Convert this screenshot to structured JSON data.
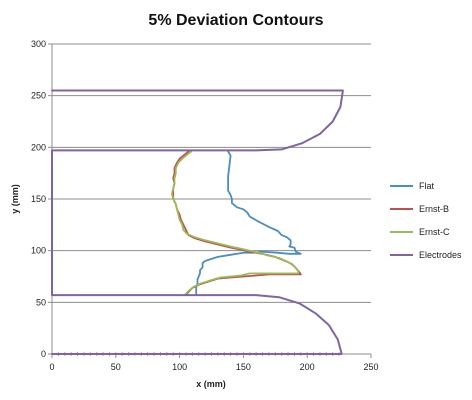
{
  "chart_data": {
    "type": "line",
    "title": "5% Deviation Contours",
    "xlabel": "x (mm)",
    "ylabel": "y (mm)",
    "xlim": [
      0,
      250
    ],
    "ylim": [
      0,
      300
    ],
    "xticks": [
      0,
      50,
      100,
      150,
      200,
      250
    ],
    "yticks": [
      0,
      50,
      100,
      150,
      200,
      250,
      300
    ],
    "grid": "horizontal",
    "legend_position": "right",
    "series": [
      {
        "name": "Flat",
        "color": "#4a8ec2",
        "points": [
          [
            138,
            196
          ],
          [
            140,
            192
          ],
          [
            139,
            182
          ],
          [
            138,
            172
          ],
          [
            138,
            164
          ],
          [
            138,
            158
          ],
          [
            140,
            154
          ],
          [
            141,
            150
          ],
          [
            141,
            146
          ],
          [
            145,
            142
          ],
          [
            150,
            140
          ],
          [
            153,
            137
          ],
          [
            155,
            133
          ],
          [
            162,
            128
          ],
          [
            170,
            123
          ],
          [
            177,
            119
          ],
          [
            180,
            115
          ],
          [
            184,
            113
          ],
          [
            187,
            110
          ],
          [
            187,
            106
          ],
          [
            186,
            104
          ],
          [
            190,
            103
          ],
          [
            191,
            99
          ],
          [
            195,
            97
          ],
          [
            186,
            97
          ],
          [
            176,
            98
          ],
          [
            165,
            99
          ],
          [
            158,
            98
          ],
          [
            150,
            98
          ],
          [
            145,
            97
          ],
          [
            140,
            96
          ],
          [
            135,
            95
          ],
          [
            130,
            94
          ],
          [
            125,
            92
          ],
          [
            120,
            90
          ],
          [
            118,
            88
          ],
          [
            118,
            84
          ],
          [
            116,
            81
          ],
          [
            116,
            78
          ],
          [
            115,
            75
          ],
          [
            114,
            72
          ],
          [
            114,
            68
          ],
          [
            113,
            65
          ],
          [
            113,
            60
          ],
          [
            113,
            57
          ]
        ]
      },
      {
        "name": "Ernst-B",
        "color": "#c0504d",
        "points": [
          [
            107,
            196
          ],
          [
            104,
            193
          ],
          [
            100,
            189
          ],
          [
            98,
            185
          ],
          [
            96,
            180
          ],
          [
            96,
            175
          ],
          [
            95,
            170
          ],
          [
            96,
            165
          ],
          [
            95,
            160
          ],
          [
            95,
            155
          ],
          [
            95,
            150
          ],
          [
            97,
            145
          ],
          [
            98,
            140
          ],
          [
            100,
            135
          ],
          [
            101,
            130
          ],
          [
            103,
            125
          ],
          [
            105,
            120
          ],
          [
            107,
            115
          ],
          [
            112,
            112
          ],
          [
            120,
            109
          ],
          [
            130,
            106
          ],
          [
            140,
            103
          ],
          [
            148,
            101
          ],
          [
            155,
            99
          ],
          [
            160,
            98
          ],
          [
            168,
            96
          ],
          [
            175,
            94
          ],
          [
            183,
            90
          ],
          [
            188,
            87
          ],
          [
            192,
            82
          ],
          [
            194,
            79
          ],
          [
            195,
            77
          ],
          [
            190,
            77
          ],
          [
            180,
            77
          ],
          [
            170,
            77
          ],
          [
            160,
            76
          ],
          [
            150,
            75
          ],
          [
            140,
            74
          ],
          [
            130,
            73
          ],
          [
            125,
            71
          ],
          [
            120,
            69
          ],
          [
            115,
            67
          ],
          [
            110,
            64
          ],
          [
            107,
            60
          ],
          [
            105,
            57
          ]
        ]
      },
      {
        "name": "Ernst-C",
        "color": "#9bbb59",
        "points": [
          [
            109,
            196
          ],
          [
            106,
            193
          ],
          [
            102,
            189
          ],
          [
            99,
            185
          ],
          [
            97,
            180
          ],
          [
            97,
            175
          ],
          [
            96,
            170
          ],
          [
            96,
            165
          ],
          [
            95,
            160
          ],
          [
            94,
            155
          ],
          [
            95,
            150
          ],
          [
            97,
            145
          ],
          [
            98,
            140
          ],
          [
            99,
            135
          ],
          [
            100,
            130
          ],
          [
            102,
            125
          ],
          [
            103,
            120
          ],
          [
            106,
            116
          ],
          [
            112,
            113
          ],
          [
            120,
            110
          ],
          [
            130,
            107
          ],
          [
            140,
            104
          ],
          [
            148,
            102
          ],
          [
            155,
            100
          ],
          [
            162,
            98
          ],
          [
            170,
            95
          ],
          [
            178,
            93
          ],
          [
            185,
            89
          ],
          [
            190,
            85
          ],
          [
            193,
            80
          ],
          [
            193,
            78
          ],
          [
            186,
            78
          ],
          [
            175,
            78
          ],
          [
            165,
            78
          ],
          [
            155,
            78
          ],
          [
            148,
            76
          ],
          [
            140,
            75
          ],
          [
            132,
            74
          ],
          [
            126,
            72
          ],
          [
            121,
            70
          ],
          [
            116,
            68
          ],
          [
            111,
            65
          ],
          [
            107,
            61
          ],
          [
            104,
            57
          ]
        ]
      },
      {
        "name": "Electrodes",
        "color": "#8064a2",
        "points": [
          [
            0,
            255
          ],
          [
            228,
            255
          ],
          [
            226,
            239
          ],
          [
            220,
            225
          ],
          [
            210,
            213
          ],
          [
            196,
            204
          ],
          [
            180,
            198
          ],
          [
            160,
            197
          ],
          [
            0,
            197
          ],
          [
            0,
            57
          ],
          [
            160,
            57
          ],
          [
            178,
            55
          ],
          [
            194,
            49
          ],
          [
            207,
            39
          ],
          [
            217,
            28
          ],
          [
            224,
            14
          ],
          [
            227,
            0
          ],
          [
            0,
            0
          ]
        ]
      }
    ]
  }
}
